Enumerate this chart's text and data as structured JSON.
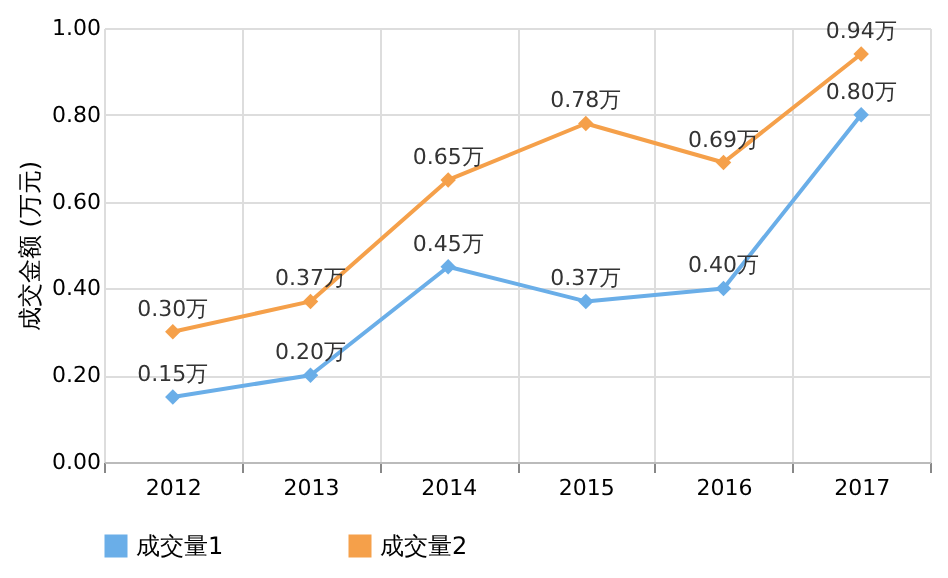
{
  "chart_data": {
    "type": "line",
    "ylabel": "成交金额 (万元)",
    "categories": [
      "2012",
      "2013",
      "2014",
      "2015",
      "2016",
      "2017"
    ],
    "series": [
      {
        "name": "成交量1",
        "color": "#6aaee8",
        "values": [
          0.15,
          0.2,
          0.45,
          0.37,
          0.4,
          0.8
        ],
        "value_labels": [
          "0.15万",
          "0.20万",
          "0.45万",
          "0.37万",
          "0.40万",
          "0.80万"
        ]
      },
      {
        "name": "成交量2",
        "color": "#f5a04a",
        "values": [
          0.3,
          0.37,
          0.65,
          0.78,
          0.69,
          0.94
        ],
        "value_labels": [
          "0.30万",
          "0.37万",
          "0.65万",
          "0.78万",
          "0.69万",
          "0.94万"
        ]
      }
    ],
    "ylim": [
      0,
      1
    ],
    "yticks": [
      {
        "value": 0,
        "label": "0.00"
      },
      {
        "value": 0.2,
        "label": "0.20"
      },
      {
        "value": 0.4,
        "label": "0.40"
      },
      {
        "value": 0.6,
        "label": "0.60"
      },
      {
        "value": 0.8,
        "label": "0.80"
      },
      {
        "value": 1,
        "label": "1.00"
      }
    ],
    "grid": true,
    "legend": "bottom",
    "marker": "diamond",
    "line_style": "solid"
  }
}
